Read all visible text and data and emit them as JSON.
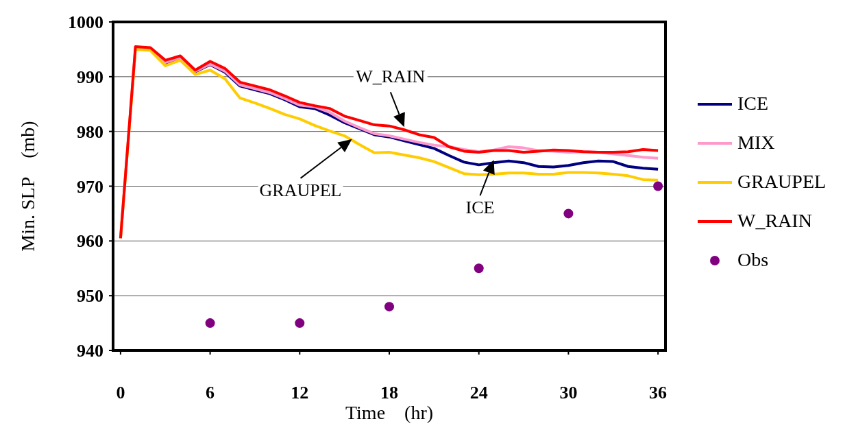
{
  "chart_data": {
    "type": "line",
    "xlabel": "Time　(hr)",
    "ylabel": "Min. SLP　(mb)",
    "x": [
      0,
      1,
      2,
      3,
      4,
      5,
      6,
      7,
      8,
      9,
      10,
      11,
      12,
      13,
      14,
      15,
      16,
      17,
      18,
      19,
      20,
      21,
      22,
      23,
      24,
      25,
      26,
      27,
      28,
      29,
      30,
      31,
      32,
      33,
      34,
      35,
      36
    ],
    "xlim": [
      -0.5,
      36.5
    ],
    "xticks": [
      0,
      6,
      12,
      18,
      24,
      30,
      36
    ],
    "ylim": [
      940,
      1000
    ],
    "yticks": [
      940,
      950,
      960,
      970,
      980,
      990,
      1000
    ],
    "grid": "y",
    "legend": "right",
    "line_style": "solid",
    "series": [
      {
        "name": "ICE",
        "color": "#000080",
        "marker": "none",
        "values": [
          null,
          null,
          null,
          992.3,
          993.4,
          990.9,
          992.2,
          990.8,
          988.3,
          987.6,
          986.9,
          985.8,
          984.5,
          984.2,
          983.0,
          981.6,
          980.5,
          979.4,
          979.0,
          978.3,
          977.6,
          976.9,
          975.6,
          974.4,
          973.9,
          974.3,
          974.6,
          974.3,
          973.6,
          973.5,
          973.8,
          974.3,
          974.6,
          974.5,
          973.6,
          973.3,
          973.1
        ]
      },
      {
        "name": "MIX",
        "color": "#ff99cc",
        "marker": "none",
        "values": [
          960.5,
          995.3,
          995.1,
          992.6,
          993.5,
          991.0,
          992.3,
          991.0,
          988.5,
          987.8,
          987.1,
          986.0,
          984.8,
          984.5,
          983.5,
          981.9,
          980.7,
          979.6,
          979.2,
          978.6,
          978.0,
          977.5,
          977.2,
          976.7,
          976.3,
          976.6,
          977.2,
          977.0,
          976.5,
          976.4,
          976.2,
          976.3,
          976.2,
          975.9,
          975.6,
          975.3,
          975.1
        ]
      },
      {
        "name": "GRAUPEL",
        "color": "#ffcc00",
        "marker": "none",
        "values": [
          960.5,
          995.0,
          994.8,
          992.0,
          993.0,
          990.4,
          991.2,
          989.6,
          986.1,
          985.2,
          984.2,
          983.1,
          982.3,
          981.1,
          980.1,
          979.2,
          977.6,
          976.1,
          976.2,
          975.7,
          975.2,
          974.5,
          973.4,
          972.3,
          972.1,
          972.2,
          972.4,
          972.4,
          972.2,
          972.2,
          972.5,
          972.5,
          972.4,
          972.2,
          971.9,
          971.2,
          971.1
        ]
      },
      {
        "name": "W_RAIN",
        "color": "#ff0000",
        "marker": "none",
        "values": [
          960.5,
          995.5,
          995.3,
          993.0,
          993.8,
          991.2,
          992.8,
          991.5,
          989.0,
          988.3,
          987.6,
          986.5,
          985.3,
          984.7,
          984.2,
          982.8,
          982.0,
          981.2,
          981.0,
          980.3,
          979.4,
          978.9,
          977.2,
          976.4,
          976.2,
          976.5,
          976.5,
          976.2,
          976.4,
          976.6,
          976.5,
          976.3,
          976.2,
          976.2,
          976.3,
          976.7,
          976.5
        ]
      },
      {
        "name": "Obs",
        "type": "scatter",
        "color": "#800080",
        "marker": "circle",
        "x": [
          6,
          12,
          18,
          24,
          30,
          36
        ],
        "values": [
          945,
          945,
          948,
          955,
          965,
          970
        ]
      }
    ],
    "annotations": [
      {
        "text": "W_RAIN",
        "x": 19,
        "y": 980.8
      },
      {
        "text": "GRAUPEL",
        "x": 15.5,
        "y": 978.6
      },
      {
        "text": "ICE",
        "x": 25,
        "y": 974.8
      }
    ]
  }
}
